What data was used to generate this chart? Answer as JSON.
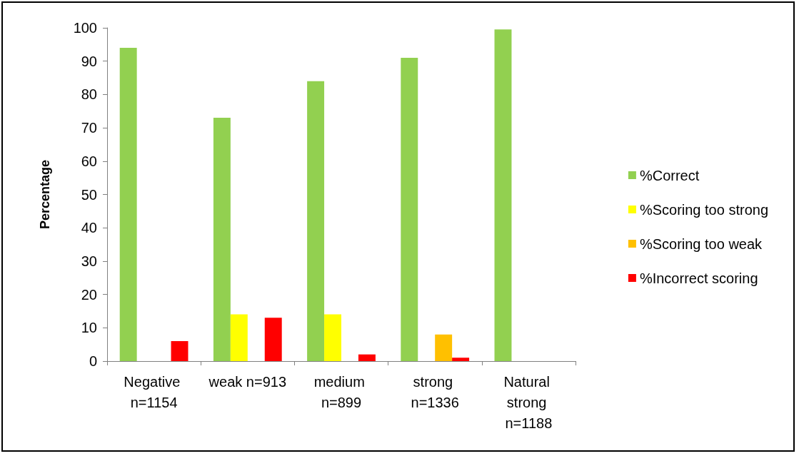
{
  "chart_data": {
    "type": "bar",
    "ylabel": "Percentage",
    "categories": [
      "Negative n=1154",
      "weak n=913",
      "medium n=899",
      "strong n=1336",
      "Natural strong n=1188"
    ],
    "series": [
      {
        "name": "%Correct",
        "color": "#92d050",
        "values": [
          94,
          73,
          84,
          91,
          99.5
        ]
      },
      {
        "name": "%Scoring too strong",
        "color": "#ffff00",
        "values": [
          0,
          14,
          14,
          0,
          0
        ]
      },
      {
        "name": "%Scoring too weak",
        "color": "#ffc000",
        "values": [
          0,
          0,
          0,
          8,
          0
        ]
      },
      {
        "name": "%Incorrect scoring",
        "color": "#ff0000",
        "values": [
          6,
          13,
          2,
          1,
          0
        ]
      }
    ],
    "ylim": [
      0,
      100
    ],
    "yticks": [
      0,
      10,
      20,
      30,
      40,
      50,
      60,
      70,
      80,
      90,
      100
    ],
    "grid": false,
    "legend": "right"
  }
}
